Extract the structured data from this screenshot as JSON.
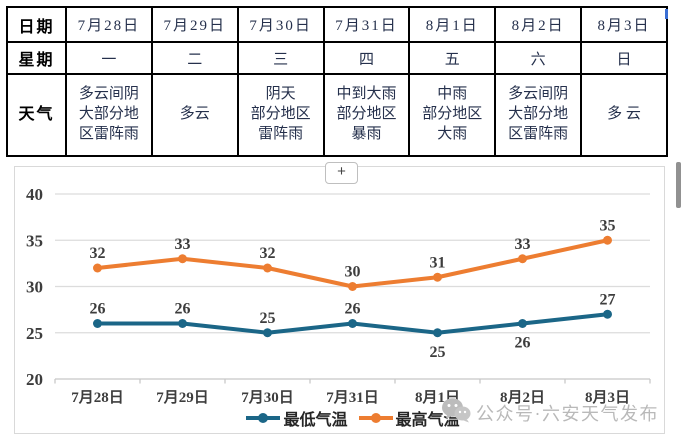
{
  "table": {
    "row_labels": [
      "日期",
      "星期",
      "天气"
    ],
    "dates": [
      "7月28日",
      "7月29日",
      "7月30日",
      "7月31日",
      "8月1日",
      "8月2日",
      "8月3日"
    ],
    "weekdays": [
      "一",
      "二",
      "三",
      "四",
      "五",
      "六",
      "日"
    ],
    "weather": [
      "多云间阴\n大部分地\n区雷阵雨",
      "多云",
      "阴天\n部分地区\n雷阵雨",
      "中到大雨\n部分地区\n暴雨",
      "中雨\n部分地区\n大雨",
      "多云间阴\n大部分地\n区雷阵雨",
      "多 云"
    ]
  },
  "chart_controls": {
    "add_button_label": "+"
  },
  "chart_data": {
    "type": "line",
    "categories": [
      "7月28日",
      "7月29日",
      "7月30日",
      "7月31日",
      "8月1日",
      "8月2日",
      "8月3日"
    ],
    "series": [
      {
        "name": "最低气温",
        "color": "#1B6687",
        "values": [
          26,
          26,
          25,
          26,
          25,
          26,
          27
        ],
        "label_below": [
          4,
          5
        ]
      },
      {
        "name": "最高气温",
        "color": "#ED7D31",
        "values": [
          32,
          33,
          32,
          30,
          31,
          33,
          35
        ],
        "label_below": []
      }
    ],
    "ylim": [
      20,
      40
    ],
    "yticks": [
      20,
      25,
      30,
      35,
      40
    ],
    "grid": true,
    "data_labels": true,
    "legend_position": "bottom",
    "colors": {
      "gridline": "#dcdcdc",
      "axis": "#c8c8c8",
      "tick_label": "#3d3d3d",
      "data_label": "#3d3d3d"
    }
  },
  "watermark": {
    "icon": "wechat-icon",
    "text": "公众号·六安天气发布"
  }
}
